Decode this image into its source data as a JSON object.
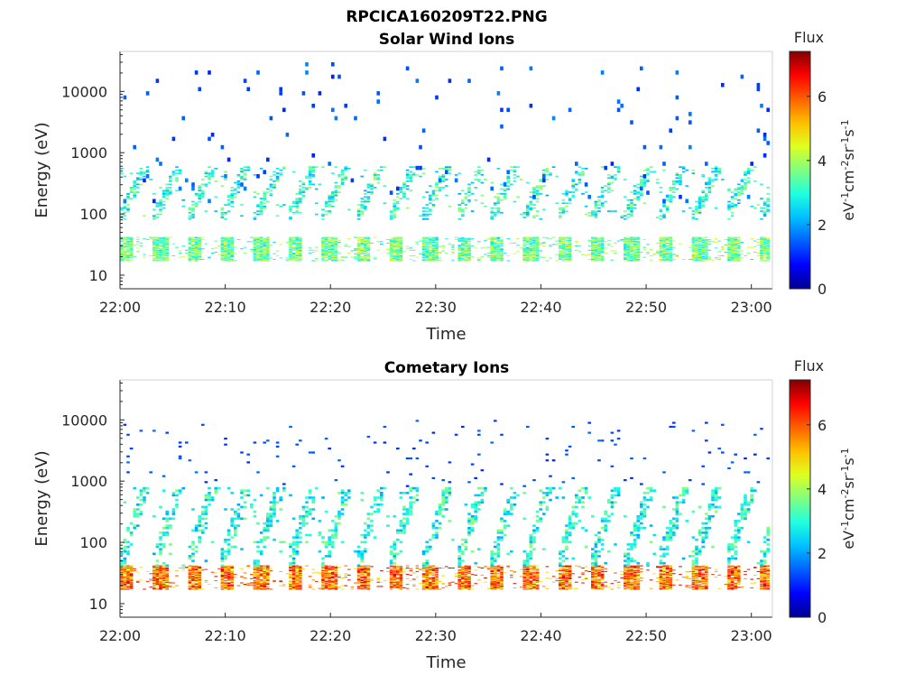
{
  "figure": {
    "filename_title": "RPCICA160209T22.PNG"
  },
  "colormap": [
    "#00008f",
    "#0000ff",
    "#0060ff",
    "#00bfff",
    "#20ffdf",
    "#80ff80",
    "#dfff20",
    "#ffbf00",
    "#ff6000",
    "#ff0000",
    "#800000"
  ],
  "chart_data": [
    {
      "type": "heatmap",
      "title": "Solar Wind Ions",
      "xlabel": "Time",
      "ylabel": "Energy (eV)",
      "x_ticks": [
        "22:00",
        "22:10",
        "22:20",
        "22:30",
        "22:40",
        "22:50",
        "23:00"
      ],
      "x_range": [
        "22:00",
        "23:02"
      ],
      "y_scale": "log",
      "y_ticks": [
        10,
        100,
        1000,
        10000
      ],
      "y_range": [
        6,
        45000
      ],
      "colorbar": {
        "title": "Flux",
        "label": "eV-1cm-2sr-1s-1",
        "ticks": [
          0,
          2,
          4,
          6
        ],
        "range": [
          0,
          7.4
        ]
      },
      "sweep_period_min": 3.2,
      "bands": [
        {
          "name": "low-energy band",
          "energy_min_ev": 17,
          "energy_max_ev": 42,
          "flux_min": 2.5,
          "flux_max": 4.6
        },
        {
          "name": "mid-energy streaks",
          "energy_min_ev": 80,
          "energy_max_ev": 600,
          "flux_min": 2.0,
          "flux_max": 4.0
        },
        {
          "name": "high-energy background",
          "energy_min_ev": 150,
          "energy_max_ev": 30000,
          "flux_min": 1.0,
          "flux_max": 1.8
        }
      ]
    },
    {
      "type": "heatmap",
      "title": "Cometary Ions",
      "xlabel": "Time",
      "ylabel": "Energy (eV)",
      "x_ticks": [
        "22:00",
        "22:10",
        "22:20",
        "22:30",
        "22:40",
        "22:50",
        "23:00"
      ],
      "x_range": [
        "22:00",
        "23:02"
      ],
      "y_scale": "log",
      "y_ticks": [
        10,
        100,
        1000,
        10000
      ],
      "y_range": [
        6,
        45000
      ],
      "colorbar": {
        "title": "Flux",
        "label": "eV-1cm-2sr-1s-1",
        "ticks": [
          0,
          2,
          4,
          6
        ],
        "range": [
          0,
          7.4
        ]
      },
      "sweep_period_min": 3.2,
      "bands": [
        {
          "name": "low-energy band",
          "energy_min_ev": 17,
          "energy_max_ev": 42,
          "flux_min": 4.5,
          "flux_max": 7.0
        },
        {
          "name": "rising streaks",
          "energy_min_ev": 40,
          "energy_max_ev": 800,
          "flux_min": 2.0,
          "flux_max": 3.8
        },
        {
          "name": "high-energy background",
          "energy_min_ev": 800,
          "energy_max_ev": 10000,
          "flux_min": 1.0,
          "flux_max": 1.6
        }
      ]
    }
  ]
}
